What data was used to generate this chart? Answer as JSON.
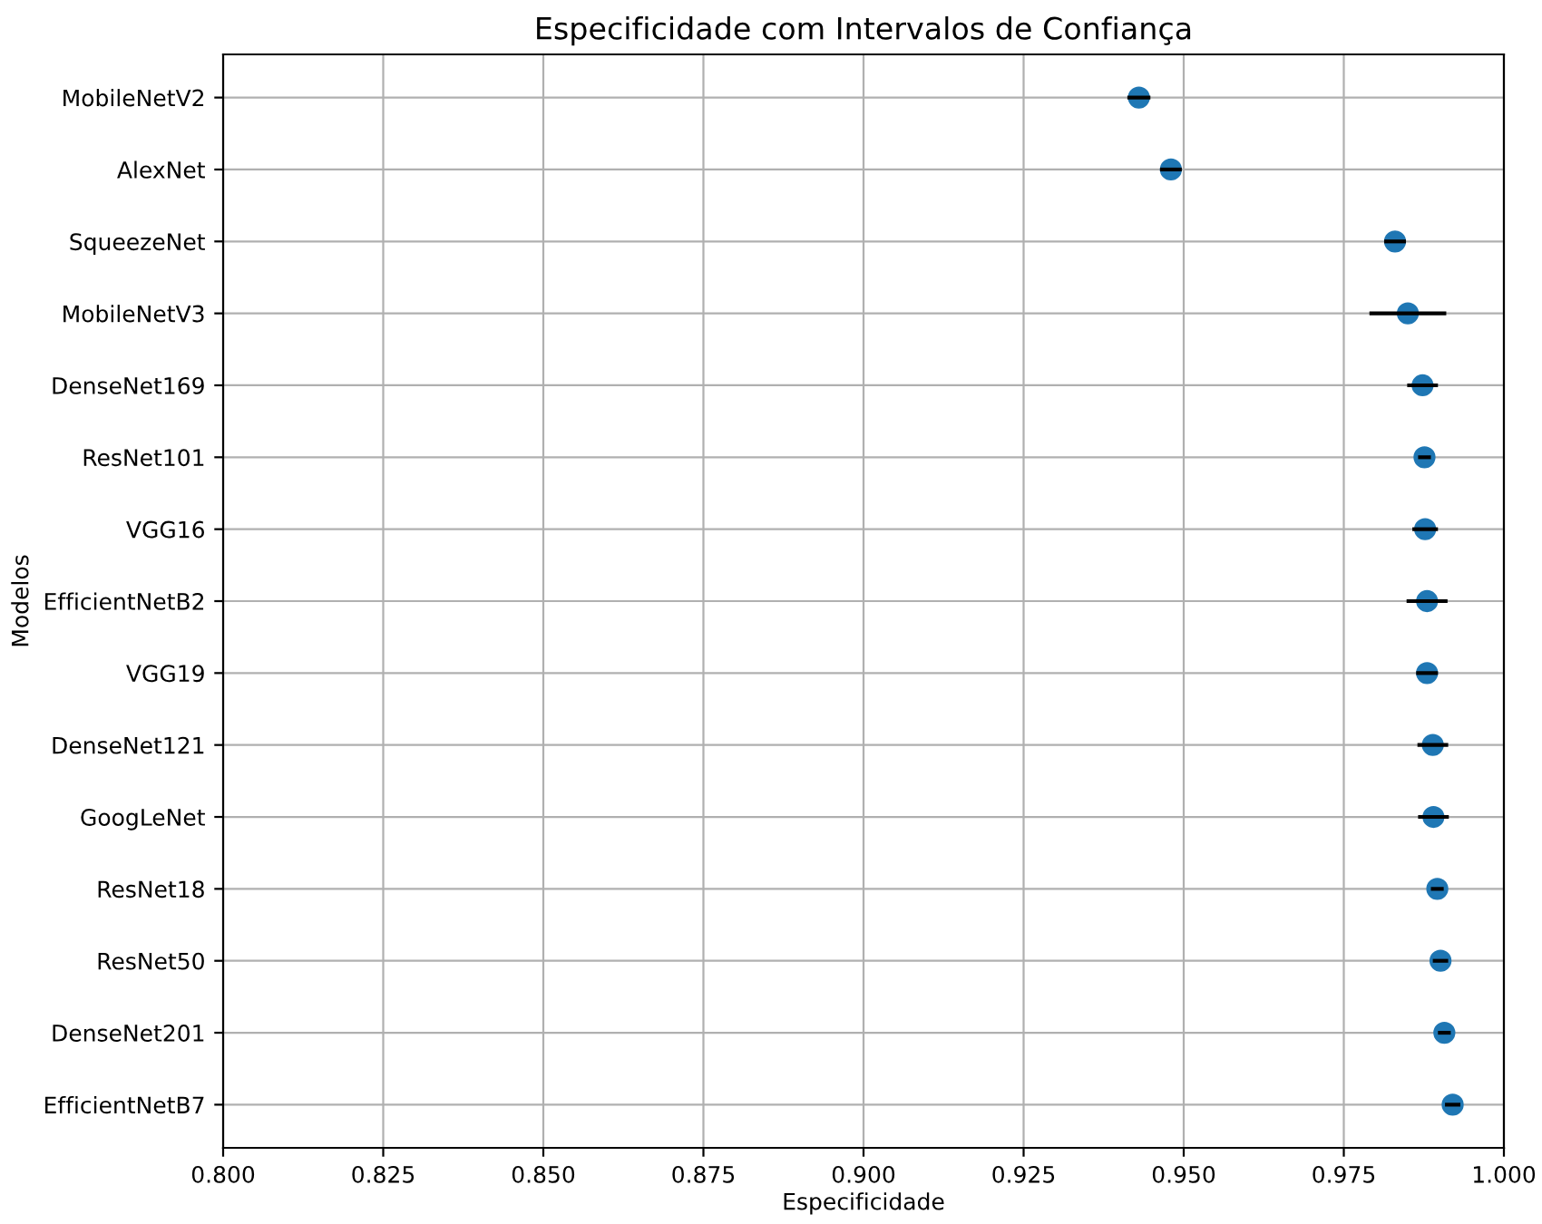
{
  "chart_data": {
    "type": "scatter",
    "title": "Especificidade com Intervalos de Confiança",
    "xlabel": "Especificidade",
    "ylabel": "Modelos",
    "orientation": "horizontal",
    "categories": [
      "MobileNetV2",
      "AlexNet",
      "SqueezeNet",
      "MobileNetV3",
      "DenseNet169",
      "ResNet101",
      "VGG16",
      "EfficientNetB2",
      "VGG19",
      "DenseNet121",
      "GoogLeNet",
      "ResNet18",
      "ResNet50",
      "DenseNet201",
      "EfficientNetB7"
    ],
    "values": [
      0.943,
      0.948,
      0.983,
      0.985,
      0.9873,
      0.9876,
      0.9877,
      0.988,
      0.988,
      0.9889,
      0.989,
      0.9896,
      0.9901,
      0.9907,
      0.992
    ],
    "errors": [
      0.0018,
      0.0017,
      0.0017,
      0.006,
      0.0024,
      0.001,
      0.002,
      0.0032,
      0.0017,
      0.0024,
      0.0024,
      0.001,
      0.0012,
      0.001,
      0.0012
    ],
    "color": "#1f77b4",
    "marker": "circle",
    "grid": true,
    "xlim": [
      0.8,
      1.0
    ],
    "xticks": [
      {
        "value": 0.8,
        "label": "0.800"
      },
      {
        "value": 0.825,
        "label": "0.825"
      },
      {
        "value": 0.85,
        "label": "0.850"
      },
      {
        "value": 0.875,
        "label": "0.875"
      },
      {
        "value": 0.9,
        "label": "0.900"
      },
      {
        "value": 0.925,
        "label": "0.925"
      },
      {
        "value": 0.95,
        "label": "0.950"
      },
      {
        "value": 0.975,
        "label": "0.975"
      },
      {
        "value": 1.0,
        "label": "1.000"
      }
    ]
  }
}
